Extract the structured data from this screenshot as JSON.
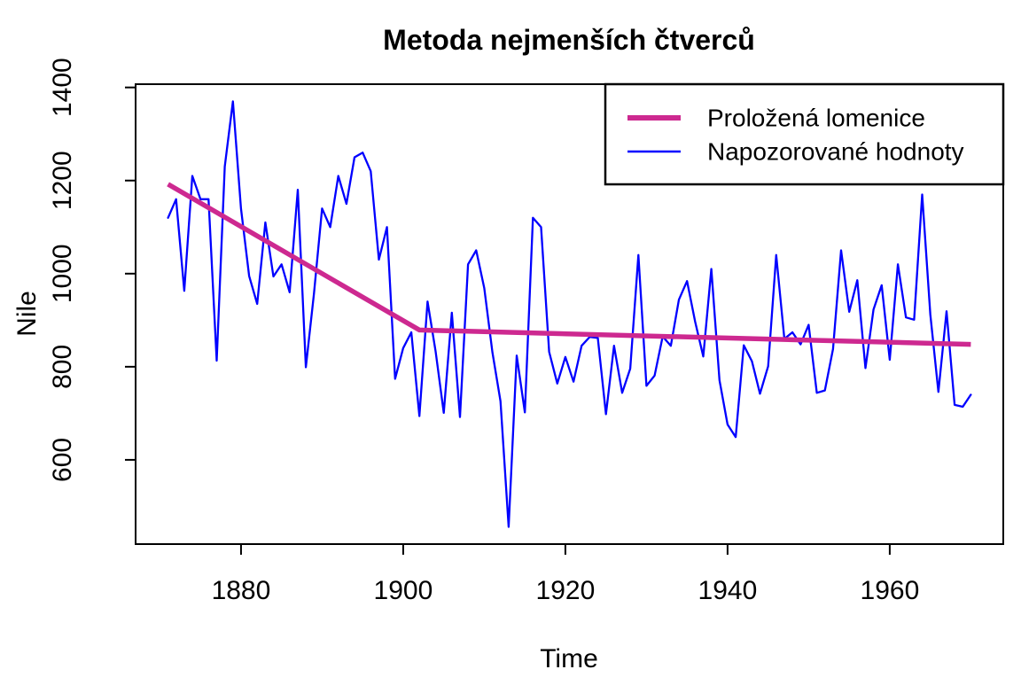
{
  "chart_data": {
    "type": "line",
    "title": "Metoda nejmenších čtverců",
    "xlabel": "Time",
    "ylabel": "Nile",
    "xlim": [
      1867,
      1974
    ],
    "ylim": [
      419,
      1407
    ],
    "x_ticks": [
      1880,
      1900,
      1920,
      1940,
      1960
    ],
    "y_ticks": [
      600,
      800,
      1000,
      1200,
      1400
    ],
    "grid": false,
    "legend_position": "topright",
    "series": [
      {
        "name": "Proložená lomenice",
        "role": "fitted-broken-line",
        "color": "#CD2990",
        "line_width": 5.5,
        "x": [
          1871,
          1902,
          1970
        ],
        "y": [
          1192,
          879,
          848
        ]
      },
      {
        "name": "Napozorované hodnoty",
        "role": "observed-values",
        "color": "#0000FF",
        "line_width": 2.3,
        "x_start": 1871,
        "x_step": 1,
        "y": [
          1120,
          1160,
          963,
          1210,
          1160,
          1160,
          813,
          1230,
          1370,
          1140,
          995,
          935,
          1110,
          994,
          1020,
          960,
          1180,
          799,
          958,
          1140,
          1100,
          1210,
          1150,
          1250,
          1260,
          1220,
          1030,
          1100,
          774,
          840,
          874,
          694,
          940,
          833,
          701,
          916,
          692,
          1020,
          1050,
          969,
          831,
          726,
          456,
          824,
          702,
          1120,
          1100,
          832,
          764,
          821,
          768,
          845,
          864,
          862,
          698,
          845,
          744,
          796,
          1040,
          759,
          781,
          865,
          845,
          944,
          984,
          897,
          822,
          1010,
          771,
          676,
          649,
          846,
          812,
          742,
          801,
          1040,
          860,
          874,
          848,
          890,
          744,
          749,
          838,
          1050,
          918,
          986,
          797,
          923,
          975,
          815,
          1020,
          906,
          901,
          1170,
          912,
          746,
          919,
          718,
          714,
          740
        ]
      }
    ]
  }
}
